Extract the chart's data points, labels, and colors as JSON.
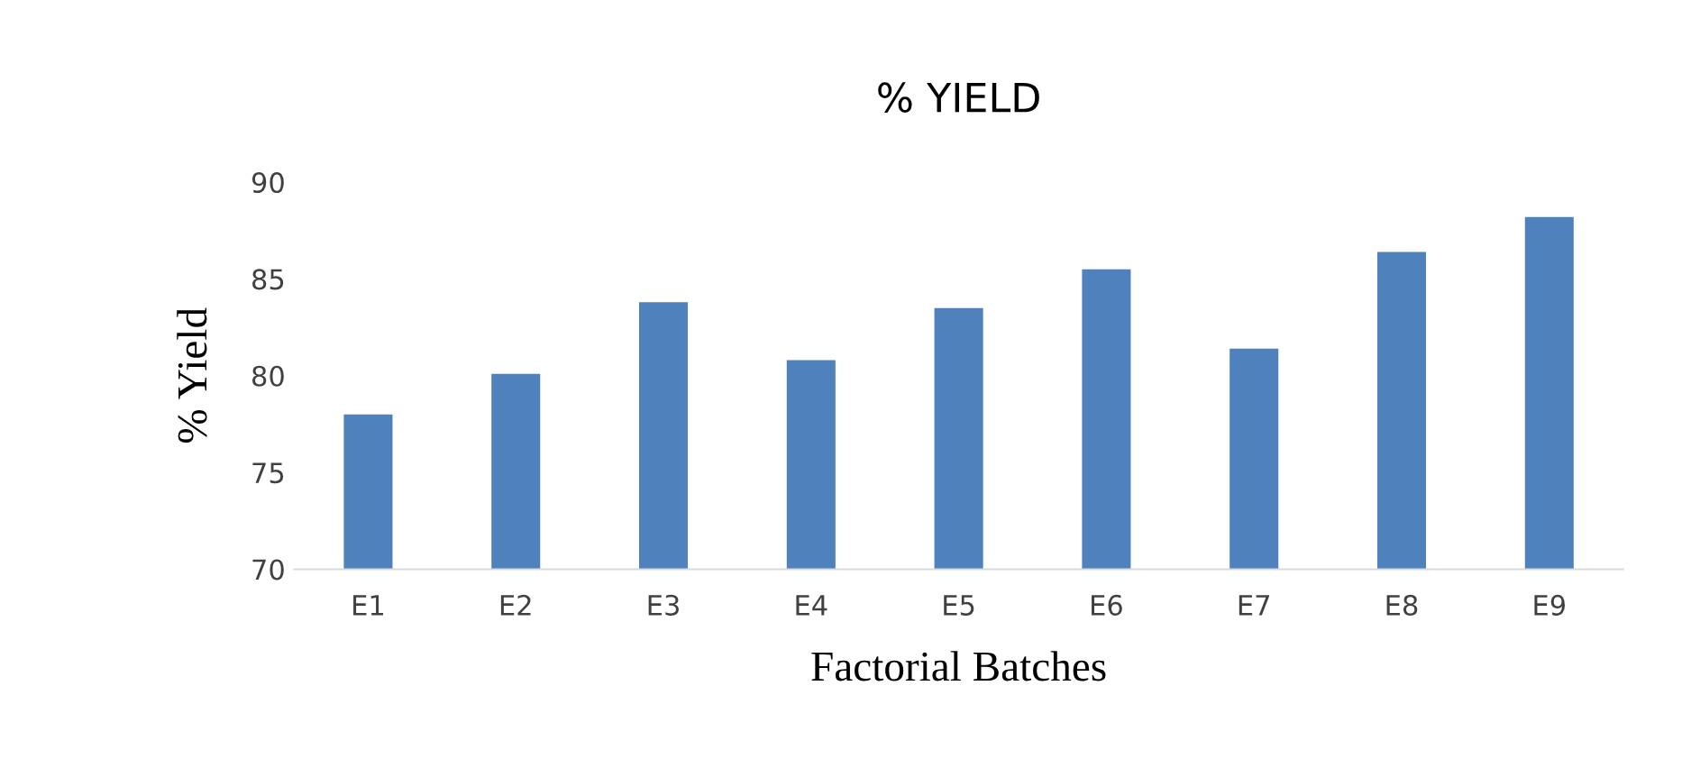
{
  "chart_data": {
    "type": "bar",
    "title": "% YIELD",
    "xlabel": "Factorial Batches",
    "ylabel": "% Yield",
    "categories": [
      "E1",
      "E2",
      "E3",
      "E4",
      "E5",
      "E6",
      "E7",
      "E8",
      "E9"
    ],
    "values": [
      78.0,
      80.1,
      83.8,
      80.8,
      83.5,
      85.5,
      81.4,
      86.4,
      88.2
    ],
    "color": "#4f81bd",
    "ylim": [
      70,
      90
    ],
    "yticks": [
      70,
      75,
      80,
      85,
      90
    ],
    "grid": false,
    "legend": false
  }
}
